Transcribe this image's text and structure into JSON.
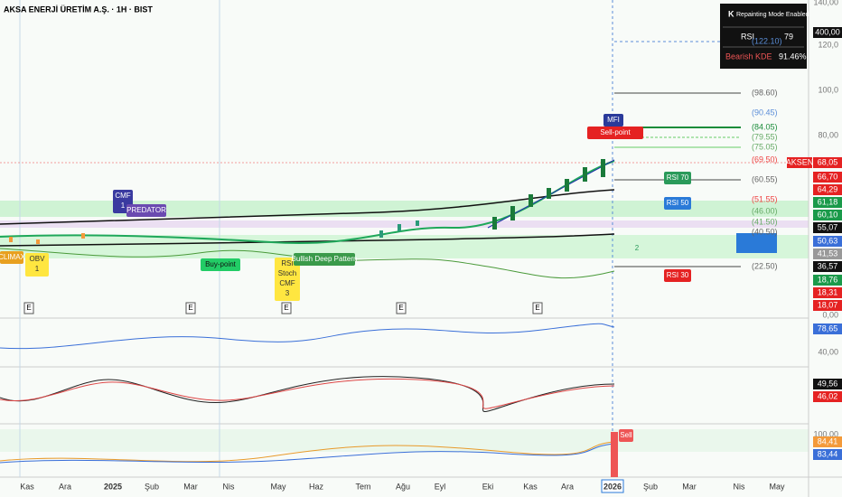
{
  "header": {
    "title": "AKSA ENERJİ ÜRETİM A.Ş. · 1H · BIST"
  },
  "info_box": {
    "icon": "K",
    "mode": "Repainting Mode Enabled",
    "rows": [
      [
        "RSI",
        "79"
      ],
      [
        "Bearish KDE",
        "91.46%"
      ]
    ]
  },
  "price_axis": [
    "140,00",
    "120,0",
    "100,0",
    "80,00",
    "0,00",
    "40,00",
    "100,00"
  ],
  "badges": [
    "400,00",
    "AKSEN",
    "68,05",
    "66,70",
    "64,29",
    "61,18",
    "60,10",
    "55,07",
    "50,63",
    "41,53",
    "36,57",
    "18,76",
    "18,31",
    "18,07",
    "78,65",
    "49,56",
    "46,02",
    "84,41",
    "83,44"
  ],
  "levels": [
    "(122.10)",
    "(98.60)",
    "(90.45)",
    "(84.05)",
    "(79.55)",
    "(75.05)",
    "(69.50)",
    "(60.55)",
    "(51.55)",
    "(46.00)",
    "(41.50)",
    "(40.50)",
    "(22.50)"
  ],
  "signals": [
    "Sell-point",
    "MFI",
    "RSI 70",
    "RSI 50",
    "RSI 30",
    "CMF 1",
    "OBV 1",
    "CLIMAX",
    "PREDATOR",
    "Buy-point",
    "RSI Stoch CMF 3",
    "Bullish Deep Pattern",
    "Sell",
    "2"
  ],
  "event_markers": [
    "E",
    "E",
    "E",
    "E",
    "E"
  ],
  "x_axis": [
    "Kas",
    "Ara",
    "2025",
    "Şub",
    "Mar",
    "Nis",
    "May",
    "Haz",
    "Tem",
    "Ağu",
    "Eyl",
    "Eki",
    "Kas",
    "Ara",
    "2026",
    "Şub",
    "Mar",
    "Nis",
    "May"
  ]
}
